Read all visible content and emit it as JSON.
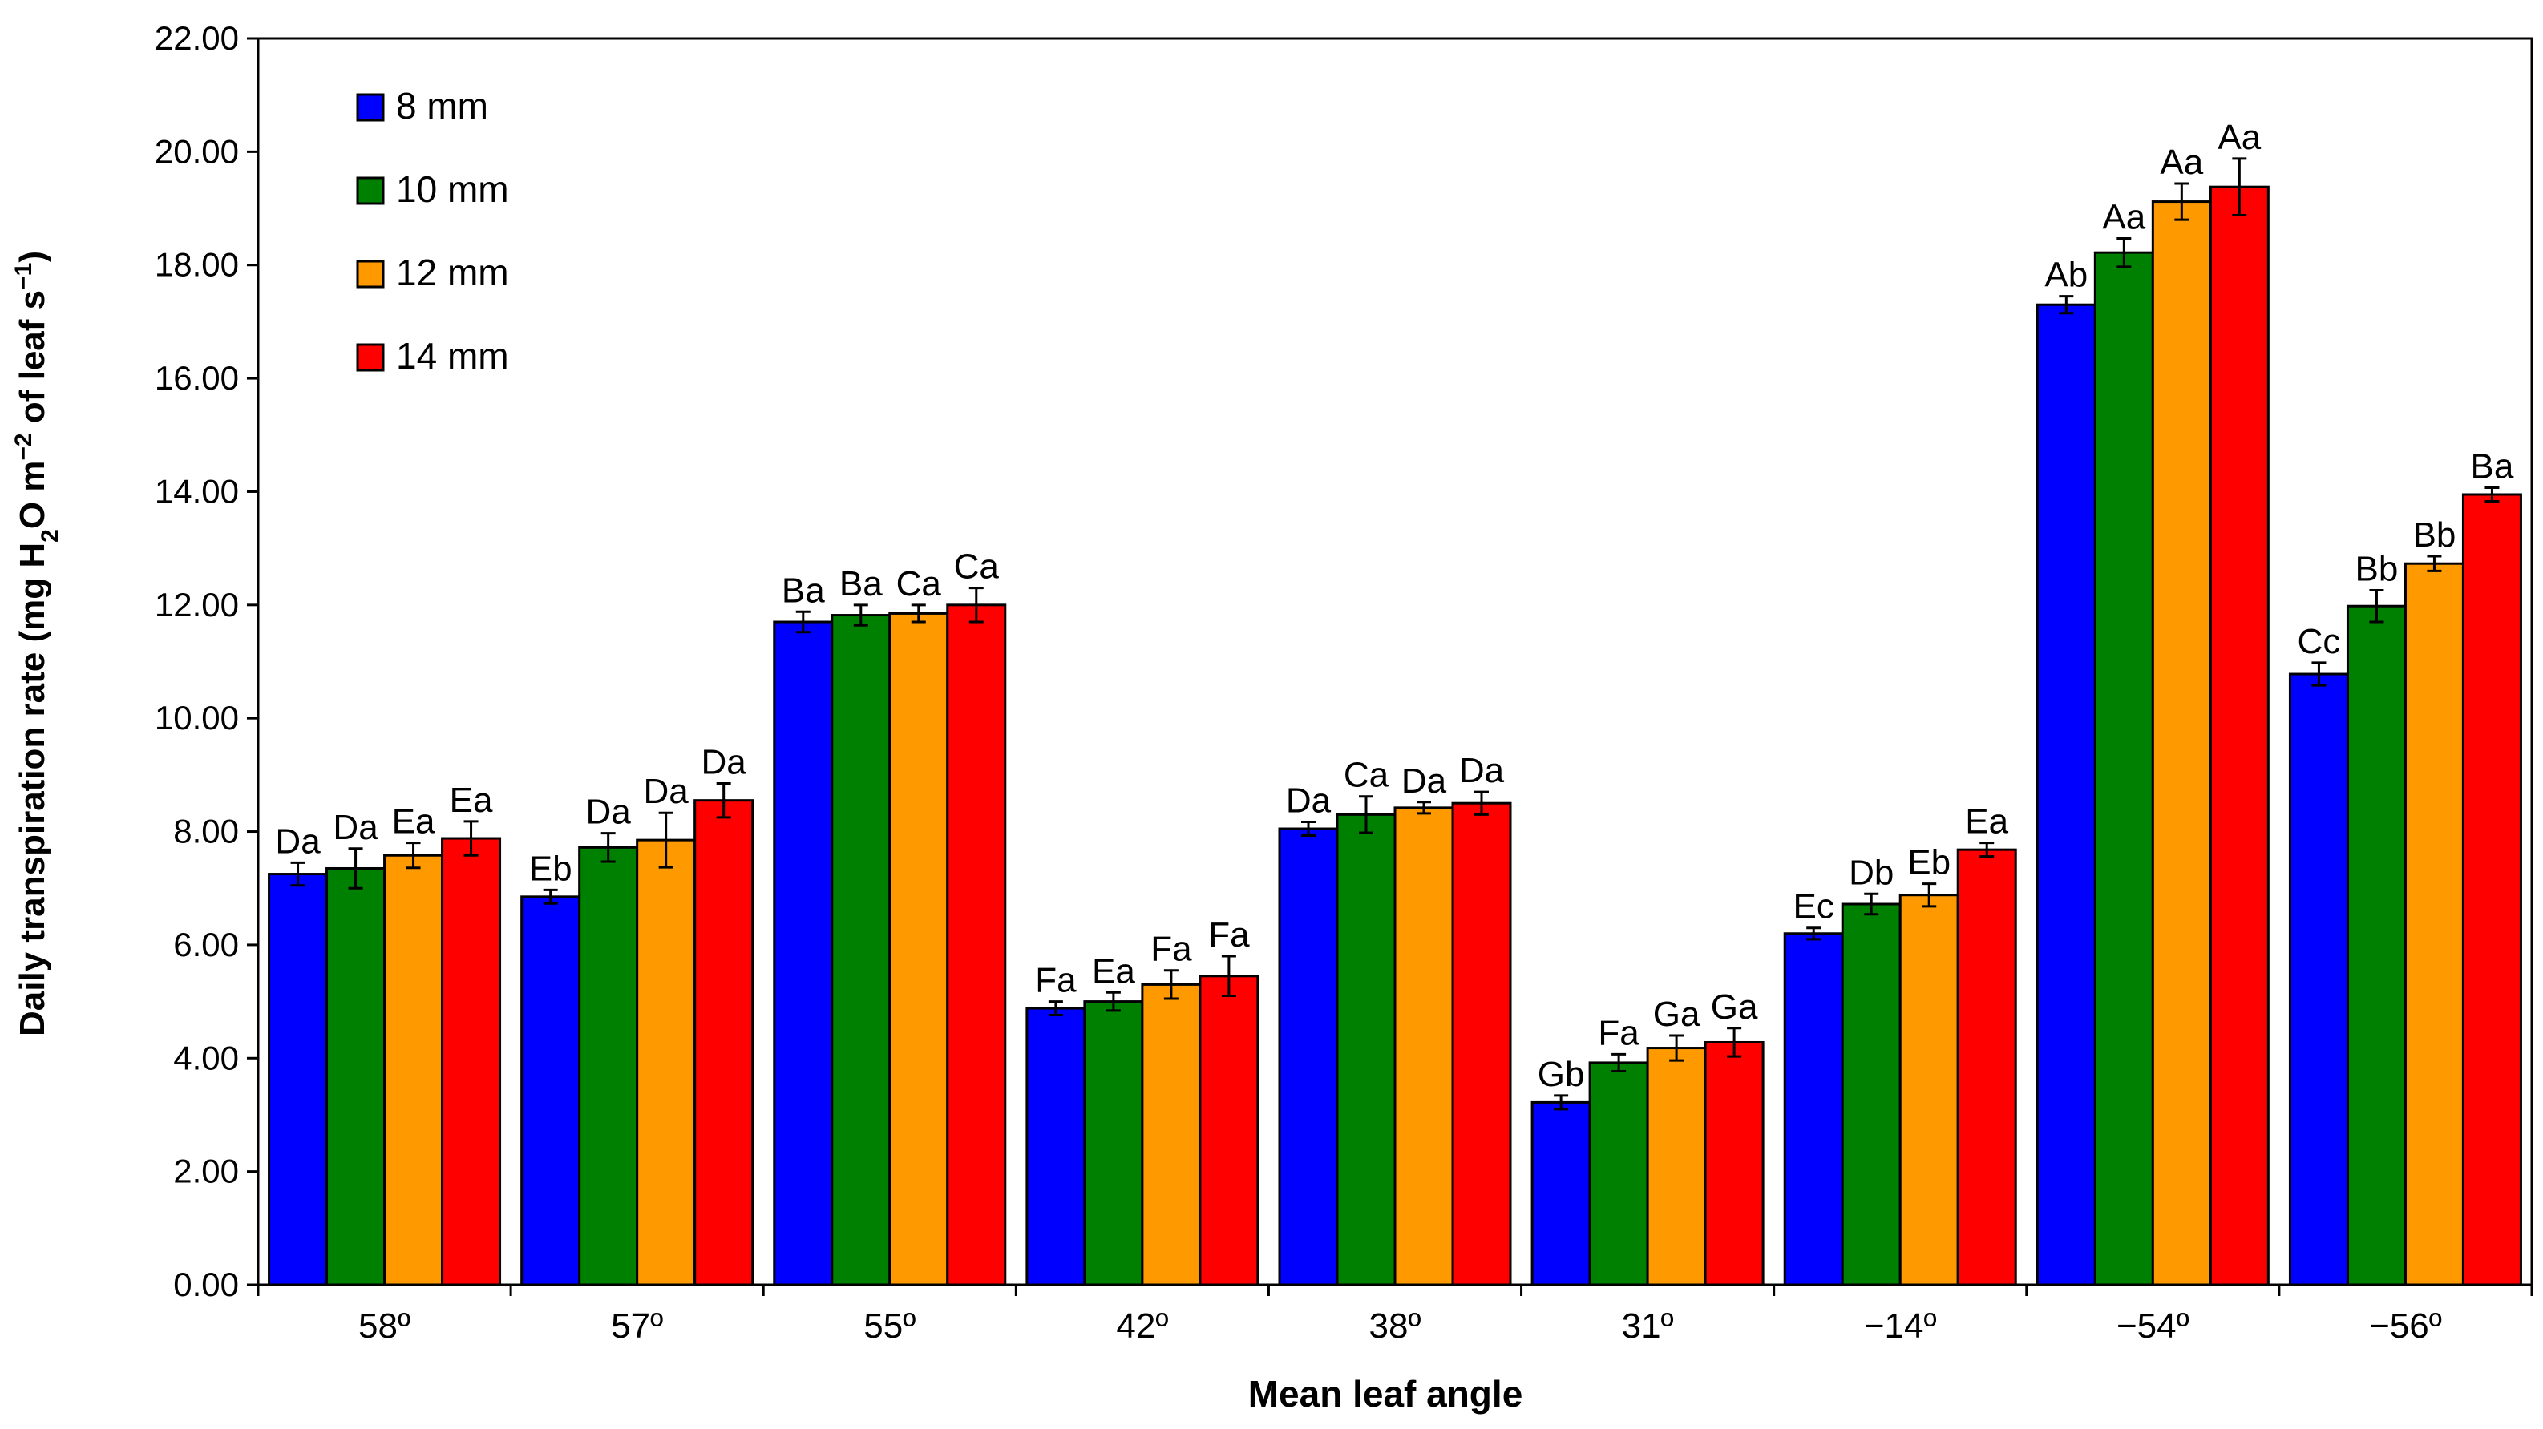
{
  "chart_data": {
    "type": "bar",
    "title": "",
    "xlabel": "Mean leaf angle",
    "ylabel": {
      "prefix": "Daily transpiration rate (mg H",
      "sub": "2",
      "mid1": "O m",
      "sup1": "−2",
      "mid2": " of leaf s",
      "sup2": "−1",
      "suffix": ")"
    },
    "ylim": [
      0,
      22
    ],
    "yticks": [
      "0.00",
      "2.00",
      "4.00",
      "6.00",
      "8.00",
      "10.00",
      "12.00",
      "14.00",
      "16.00",
      "18.00",
      "20.00",
      "22.00"
    ],
    "categories": [
      "58º",
      "57º",
      "55º",
      "42º",
      "38º",
      "31º",
      "−14º",
      "−54º",
      "−56º"
    ],
    "legend_position": "top-left",
    "series": [
      {
        "name": "8 mm",
        "color": "#0000ff",
        "values": [
          7.25,
          6.85,
          11.7,
          4.88,
          8.05,
          3.22,
          6.2,
          17.3,
          10.78
        ],
        "errors": [
          0.2,
          0.12,
          0.18,
          0.12,
          0.12,
          0.12,
          0.1,
          0.15,
          0.2
        ],
        "labels": [
          "Da",
          "Eb",
          "Ba",
          "Fa",
          "Da",
          "Gb",
          "Ec",
          "Ab",
          "Cc"
        ]
      },
      {
        "name": "10 mm",
        "color": "#008000",
        "values": [
          7.35,
          7.72,
          11.82,
          5.0,
          8.3,
          3.92,
          6.72,
          18.22,
          11.98
        ],
        "errors": [
          0.35,
          0.25,
          0.18,
          0.16,
          0.32,
          0.15,
          0.18,
          0.25,
          0.28
        ],
        "labels": [
          "Da",
          "Da",
          "Ba",
          "Ea",
          "Ca",
          "Fa",
          "Db",
          "Aa",
          "Bb"
        ]
      },
      {
        "name": "12 mm",
        "color": "#ff9900",
        "values": [
          7.58,
          7.85,
          11.85,
          5.3,
          8.42,
          4.18,
          6.88,
          19.12,
          12.73
        ],
        "errors": [
          0.22,
          0.48,
          0.15,
          0.25,
          0.1,
          0.22,
          0.2,
          0.32,
          0.13
        ],
        "labels": [
          "Ea",
          "Da",
          "Ca",
          "Fa",
          "Da",
          "Ga",
          "Eb",
          "Aa",
          "Bb"
        ]
      },
      {
        "name": "14 mm",
        "color": "#ff0000",
        "values": [
          7.88,
          8.55,
          12.0,
          5.45,
          8.5,
          4.28,
          7.68,
          19.38,
          13.95
        ],
        "errors": [
          0.3,
          0.3,
          0.3,
          0.35,
          0.2,
          0.25,
          0.12,
          0.5,
          0.12
        ],
        "labels": [
          "Ea",
          "Da",
          "Ca",
          "Fa",
          "Da",
          "Ga",
          "Ea",
          "Aa",
          "Ba"
        ]
      }
    ]
  }
}
